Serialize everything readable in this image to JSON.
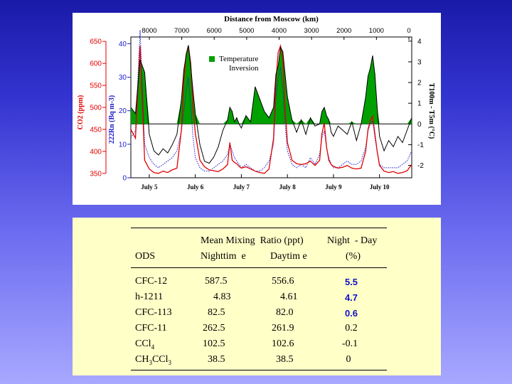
{
  "chart_data": {
    "type": "line",
    "title": "Distance from Moscow (km)",
    "top_axis_ticks": [
      "8000",
      "7000",
      "6000",
      "5000",
      "4000",
      "3000",
      "2000",
      "1000",
      "0"
    ],
    "x_tick_labels": [
      "July 5",
      "July 6",
      "July 7",
      "July 8",
      "July 9",
      "July 10"
    ],
    "co2_axis": {
      "label": "CO2 (ppm)",
      "ticks": [
        350,
        400,
        450,
        500,
        550,
        600,
        650
      ],
      "ylim": [
        340,
        660
      ],
      "color": "#e00000"
    },
    "rn_axis": {
      "label": "222Rn (Bq m-3)",
      "ticks": [
        0,
        10,
        20,
        30,
        40
      ],
      "ylim": [
        0,
        42
      ],
      "color": "#1a1ad0"
    },
    "dt_axis": {
      "label": "T100m - T5m (°C)",
      "ticks": [
        -2,
        -1,
        0,
        1,
        2,
        3,
        4
      ],
      "ylim": [
        -2.6,
        4.2
      ],
      "color": "#000000"
    },
    "legend": {
      "entries": [
        "Temperature",
        "Inversion"
      ],
      "color": "#00a000",
      "placement": "top-left"
    },
    "time_range": [
      4.6,
      10.7
    ],
    "series": [
      {
        "axis": "dt",
        "color": "#000000",
        "x": [
          4.6,
          4.7,
          4.8,
          4.9,
          5.0,
          5.1,
          5.2,
          5.3,
          5.4,
          5.5,
          5.6,
          5.7,
          5.75,
          5.8,
          5.85,
          5.9,
          5.95,
          6.0,
          6.1,
          6.2,
          6.3,
          6.4,
          6.5,
          6.6,
          6.7,
          6.75,
          6.8,
          6.85,
          6.9,
          6.95,
          7.0,
          7.1,
          7.2,
          7.3,
          7.4,
          7.5,
          7.6,
          7.7,
          7.75,
          7.8,
          7.85,
          7.9,
          7.95,
          8.0,
          8.1,
          8.2,
          8.3,
          8.4,
          8.5,
          8.6,
          8.7,
          8.75,
          8.8,
          8.85,
          8.9,
          8.95,
          9.0,
          9.1,
          9.2,
          9.3,
          9.4,
          9.5,
          9.6,
          9.7,
          9.75,
          9.8,
          9.85,
          9.9,
          9.95,
          10.0,
          10.1,
          10.2,
          10.3,
          10.4,
          10.5,
          10.6,
          10.7
        ],
        "values": [
          0.8,
          0.5,
          3.1,
          2.5,
          -0.5,
          -1.3,
          -1.5,
          -1.2,
          -1.4,
          -1.0,
          -0.5,
          1.2,
          2.6,
          3.3,
          3.8,
          2.8,
          1.6,
          0.5,
          -1.0,
          -1.8,
          -1.9,
          -1.6,
          -1.1,
          -0.3,
          0.2,
          0.8,
          0.6,
          0.1,
          0.3,
          0.0,
          -0.2,
          0.4,
          0.1,
          1.8,
          1.2,
          0.6,
          0.3,
          0.8,
          2.4,
          2.8,
          3.7,
          3.5,
          2.4,
          1.3,
          0.2,
          -0.4,
          0.2,
          -0.5,
          0.3,
          -0.1,
          0.0,
          0.6,
          0.8,
          0.4,
          0.2,
          -0.4,
          -0.6,
          -0.1,
          -0.3,
          -0.5,
          0.1,
          -0.8,
          0.0,
          1.3,
          2.3,
          2.7,
          3.3,
          2.4,
          0.8,
          -0.6,
          -1.3,
          -0.8,
          -1.1,
          -0.6,
          -0.9,
          -0.3,
          0.3
        ]
      },
      {
        "axis": "co2",
        "color": "#e00000",
        "x": [
          4.6,
          4.7,
          4.8,
          4.9,
          5.0,
          5.1,
          5.2,
          5.3,
          5.4,
          5.5,
          5.6,
          5.7,
          5.75,
          5.8,
          5.85,
          5.9,
          5.95,
          6.0,
          6.1,
          6.2,
          6.3,
          6.4,
          6.5,
          6.6,
          6.7,
          6.75,
          6.8,
          6.85,
          6.9,
          6.95,
          7.0,
          7.1,
          7.2,
          7.3,
          7.4,
          7.5,
          7.6,
          7.7,
          7.75,
          7.8,
          7.85,
          7.9,
          7.95,
          8.0,
          8.1,
          8.2,
          8.3,
          8.4,
          8.5,
          8.6,
          8.7,
          8.75,
          8.8,
          8.85,
          8.9,
          8.95,
          9.0,
          9.1,
          9.2,
          9.3,
          9.4,
          9.5,
          9.6,
          9.7,
          9.75,
          9.8,
          9.85,
          9.9,
          9.95,
          10.0,
          10.1,
          10.2,
          10.3,
          10.4,
          10.5,
          10.6,
          10.7
        ],
        "values": [
          450,
          430,
          640,
          380,
          360,
          352,
          350,
          355,
          352,
          358,
          362,
          450,
          560,
          620,
          640,
          600,
          500,
          440,
          380,
          365,
          358,
          356,
          354,
          360,
          370,
          420,
          380,
          375,
          372,
          366,
          362,
          365,
          360,
          355,
          352,
          350,
          360,
          430,
          560,
          625,
          640,
          610,
          500,
          420,
          380,
          372,
          370,
          372,
          378,
          368,
          380,
          440,
          465,
          410,
          380,
          370,
          366,
          362,
          364,
          368,
          362,
          360,
          362,
          400,
          450,
          470,
          480,
          440,
          400,
          368,
          355,
          352,
          354,
          350,
          352,
          356,
          370
        ]
      },
      {
        "axis": "rn",
        "color": "#1a1ad0",
        "x": [
          4.6,
          4.7,
          4.8,
          4.9,
          5.0,
          5.1,
          5.2,
          5.3,
          5.4,
          5.5,
          5.6,
          5.7,
          5.75,
          5.8,
          5.85,
          5.9,
          5.95,
          6.0,
          6.1,
          6.2,
          6.3,
          6.4,
          6.5,
          6.6,
          6.7,
          6.75,
          6.8,
          6.85,
          6.9,
          6.95,
          7.0,
          7.1,
          7.2,
          7.3,
          7.4,
          7.5,
          7.6,
          7.7,
          7.75,
          7.8,
          7.85,
          7.9,
          7.95,
          8.0,
          8.1,
          8.2,
          8.3,
          8.4,
          8.5,
          8.6,
          8.7,
          8.75,
          8.8,
          8.85,
          8.9,
          8.95,
          9.0,
          9.1,
          9.2,
          9.3,
          9.4,
          9.5,
          9.6,
          9.7,
          9.75,
          9.8,
          9.85,
          9.9,
          9.95,
          10.0,
          10.1,
          10.2,
          10.3,
          10.4,
          10.5,
          10.6,
          10.7
        ],
        "values": [
          12,
          14,
          44,
          10,
          6,
          4,
          3,
          4,
          5,
          6,
          8,
          14,
          20,
          26,
          30,
          22,
          12,
          6,
          3,
          2,
          2,
          3,
          4,
          5,
          7,
          10,
          8,
          6,
          5,
          4,
          3,
          4,
          3,
          2,
          2,
          3,
          5,
          10,
          24,
          30,
          33,
          26,
          16,
          8,
          4,
          3,
          4,
          3,
          6,
          4,
          7,
          12,
          14,
          9,
          6,
          4,
          3,
          3,
          4,
          5,
          4,
          4,
          5,
          9,
          14,
          16,
          17,
          12,
          8,
          4,
          3,
          3,
          3,
          3,
          4,
          5,
          8
        ]
      }
    ]
  },
  "table": {
    "header_row1": {
      "col2": "Mean Mixing  Ratio (ppt)",
      "col4": "Night  - Day"
    },
    "header_row2": {
      "col1": "ODS",
      "col2": "Nighttim  e",
      "col3": "Daytim e",
      "col4": "(%)"
    },
    "rows": [
      {
        "ods": "CFC-12",
        "night": "587.5",
        "day": "556.6",
        "diff": "5.5",
        "highlight": true
      },
      {
        "ods": "h-1211",
        "night": "4.83",
        "day": "4.61",
        "diff": "4.7",
        "highlight": true
      },
      {
        "ods": "CFC-113",
        "night": "82.5",
        "day": "82.0",
        "diff": "0.6",
        "highlight": true
      },
      {
        "ods": "CFC-11",
        "night": "262.5",
        "day": "261.9",
        "diff": "0.2",
        "highlight": false
      },
      {
        "ods_main": "CCl",
        "ods_sub": "4",
        "night": "102.5",
        "day": "102.6",
        "diff": "-0.1",
        "highlight": false
      },
      {
        "ods_main": "CH",
        "ods_sub": "3",
        "ods_main2": "CCl",
        "ods_sub2": "3",
        "night": "38.5",
        "day": "38.5",
        "diff": "0",
        "highlight": false
      }
    ]
  }
}
